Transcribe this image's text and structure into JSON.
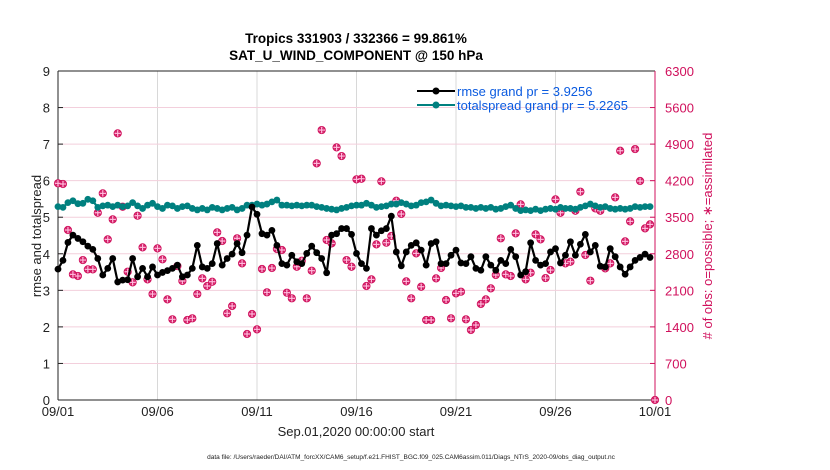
{
  "chart_data": {
    "type": "line",
    "title": "Tropics 331903 / 332366 = 99.861%",
    "subtitle": "SAT_U_WIND_COMPONENT @ 150 hPa",
    "xlabel": "Sep.01,2020 00:00:00 start",
    "ylabel": "rmse and totalspread",
    "y2label": "# of obs: o=possible; ∗=assimilated",
    "footnote": "data file: /Users/raeder/DAI/ATM_forcXX/CAM6_setup/f.e21.FHIST_BGC.f09_025.CAM6assim.011/Diags_NTrS_2020-09/obs_diag_output.nc",
    "x_unit": "days since Sep.01,2020 00:00:00",
    "x_step_days": 0.25,
    "xlim": [
      0,
      30
    ],
    "xticks": [
      0,
      5,
      10,
      15,
      20,
      25,
      30
    ],
    "xtick_labels": [
      "09/01",
      "09/06",
      "09/11",
      "09/16",
      "09/21",
      "09/26",
      "10/01"
    ],
    "ylim": [
      0,
      9
    ],
    "yticks": [
      "0",
      "1",
      "2",
      "3",
      "4",
      "5",
      "6",
      "7",
      "8",
      "9"
    ],
    "y2lim": [
      0,
      6300
    ],
    "y2ticks": [
      "0",
      "700",
      "1400",
      "2100",
      "2800",
      "3500",
      "4200",
      "4900",
      "5600",
      "6300"
    ],
    "grid": true,
    "legend_position": "top-right",
    "colors": {
      "rmse": "#000000",
      "totalspread": "#00807f",
      "obs": "#d0105c",
      "legend_text": "#0b5be0",
      "vgrid": "#d8d8d8",
      "hgrid": "#f3cfdc"
    },
    "series": [
      {
        "name": "rmse",
        "legend": "rmse grand pr = 3.9256",
        "axis": "left",
        "values": [
          3.58,
          3.82,
          4.31,
          4.51,
          4.42,
          4.33,
          4.21,
          4.12,
          3.87,
          3.42,
          3.6,
          3.87,
          3.23,
          3.28,
          3.29,
          3.87,
          3.37,
          3.6,
          3.37,
          3.64,
          3.42,
          3.49,
          3.54,
          3.6,
          3.69,
          3.37,
          3.42,
          3.6,
          4.23,
          3.64,
          3.6,
          3.73,
          4.28,
          3.69,
          3.87,
          3.99,
          4.28,
          4.03,
          4.51,
          5.28,
          5.08,
          4.55,
          4.51,
          4.64,
          4.23,
          3.73,
          3.69,
          3.96,
          3.78,
          3.73,
          4.01,
          4.21,
          4.03,
          3.87,
          3.48,
          4.51,
          4.55,
          4.69,
          4.69,
          4.53,
          4.01,
          3.73,
          3.6,
          4.69,
          4.51,
          4.63,
          4.69,
          5.03,
          4.05,
          3.67,
          4.05,
          4.23,
          4.3,
          4.1,
          3.69,
          4.28,
          4.33,
          3.73,
          3.73,
          3.96,
          4.1,
          3.75,
          3.73,
          3.92,
          3.6,
          3.55,
          3.92,
          3.69,
          3.55,
          3.82,
          3.73,
          4.12,
          3.92,
          3.42,
          3.51,
          4.3,
          3.82,
          3.69,
          3.73,
          4.05,
          4.14,
          3.75,
          3.96,
          4.33,
          3.96,
          4.26,
          4.53,
          4.05,
          4.23,
          3.66,
          3.64,
          4.14,
          3.92,
          3.64,
          3.44,
          3.64,
          3.82,
          3.9,
          3.99,
          3.9
        ]
      },
      {
        "name": "totalspread",
        "legend": "totalspread grand pr = 5.2265",
        "axis": "left",
        "values": [
          5.29,
          5.27,
          5.4,
          5.45,
          5.37,
          5.38,
          5.49,
          5.45,
          5.27,
          5.31,
          5.33,
          5.29,
          5.33,
          5.29,
          5.31,
          5.4,
          5.31,
          5.24,
          5.33,
          5.38,
          5.29,
          5.24,
          5.33,
          5.31,
          5.24,
          5.29,
          5.31,
          5.24,
          5.2,
          5.24,
          5.2,
          5.27,
          5.24,
          5.2,
          5.24,
          5.27,
          5.2,
          5.24,
          5.33,
          5.33,
          5.36,
          5.33,
          5.36,
          5.42,
          5.47,
          5.33,
          5.33,
          5.31,
          5.33,
          5.31,
          5.33,
          5.33,
          5.29,
          5.27,
          5.24,
          5.22,
          5.2,
          5.24,
          5.27,
          5.31,
          5.33,
          5.33,
          5.38,
          5.33,
          5.27,
          5.29,
          5.31,
          5.36,
          5.36,
          5.4,
          5.36,
          5.31,
          5.33,
          5.4,
          5.42,
          5.47,
          5.38,
          5.31,
          5.33,
          5.31,
          5.29,
          5.31,
          5.27,
          5.27,
          5.24,
          5.27,
          5.24,
          5.27,
          5.22,
          5.24,
          5.29,
          5.33,
          5.24,
          5.18,
          5.2,
          5.18,
          5.22,
          5.18,
          5.22,
          5.24,
          5.22,
          5.27,
          5.24,
          5.24,
          5.22,
          5.27,
          5.31,
          5.36,
          5.31,
          5.27,
          5.29,
          5.24,
          5.22,
          5.24,
          5.22,
          5.24,
          5.29,
          5.27,
          5.29,
          5.29
        ]
      },
      {
        "name": "obs_possible",
        "marker": "o",
        "axis": "right",
        "values": [
          4149,
          4136,
          3255,
          2406,
          2374,
          2680,
          2502,
          2502,
          3586,
          3957,
          3076,
          3459,
          5106,
          3701,
          2456,
          2253,
          3529,
          2923,
          2310,
          2029,
          2904,
          2694,
          1927,
          1545,
          2565,
          2278,
          1532,
          1564,
          2029,
          2329,
          2183,
          2265,
          3210,
          3044,
          1660,
          1800,
          3096,
          2616,
          1264,
          1647,
          1353,
          2508,
          2062,
          2527,
          2891,
          2872,
          2055,
          1947,
          2552,
          2667,
          1947,
          2476,
          4531,
          5169,
          3064,
          2999,
          4838,
          4671,
          2680,
          2552,
          4225,
          4237,
          2183,
          2310,
          2980,
          4187,
          3012,
          3140,
          3816,
          3561,
          2272,
          1947,
          2808,
          2169,
          1532,
          1532,
          2329,
          2527,
          1915,
          1564,
          2042,
          2074,
          1545,
          1340,
          1436,
          1838,
          1927,
          2138,
          2393,
          3096,
          2406,
          2374,
          3191,
          3746,
          2310,
          2437,
          3172,
          3076,
          2335,
          2489,
          3842,
          3586,
          2616,
          2648,
          3624,
          3989,
          2776,
          2285,
          3669,
          3624,
          2521,
          2616,
          3880,
          4773,
          3038,
          3421,
          4805,
          4193,
          3287,
          3363,
          0
        ]
      },
      {
        "name": "obs_assimilated",
        "marker": "*",
        "axis": "right",
        "values": [
          4149,
          4136,
          3255,
          2406,
          2374,
          2680,
          2502,
          2502,
          3586,
          3957,
          3076,
          3459,
          5106,
          3701,
          2456,
          2253,
          3529,
          2923,
          2310,
          2029,
          2904,
          2694,
          1927,
          1545,
          2565,
          2278,
          1532,
          1564,
          2029,
          2329,
          2183,
          2265,
          3210,
          3044,
          1660,
          1800,
          3096,
          2616,
          1264,
          1647,
          1353,
          2508,
          2062,
          2527,
          2891,
          2872,
          2055,
          1947,
          2552,
          2667,
          1947,
          2476,
          4531,
          5169,
          3064,
          2999,
          4838,
          4671,
          2680,
          2552,
          4225,
          4237,
          2183,
          2310,
          2980,
          4187,
          3012,
          3140,
          3816,
          3561,
          2272,
          1947,
          2808,
          2169,
          1532,
          1532,
          2329,
          2527,
          1915,
          1564,
          2042,
          2074,
          1545,
          1340,
          1436,
          1838,
          1927,
          2138,
          2393,
          3096,
          2406,
          2374,
          3191,
          3746,
          2310,
          2437,
          3172,
          3076,
          2335,
          2489,
          3842,
          3586,
          2616,
          2648,
          3624,
          3989,
          2776,
          2285,
          3669,
          3624,
          2521,
          2616,
          3880,
          4773,
          3038,
          3421,
          4805,
          4193,
          3287,
          3363,
          0
        ]
      }
    ]
  }
}
